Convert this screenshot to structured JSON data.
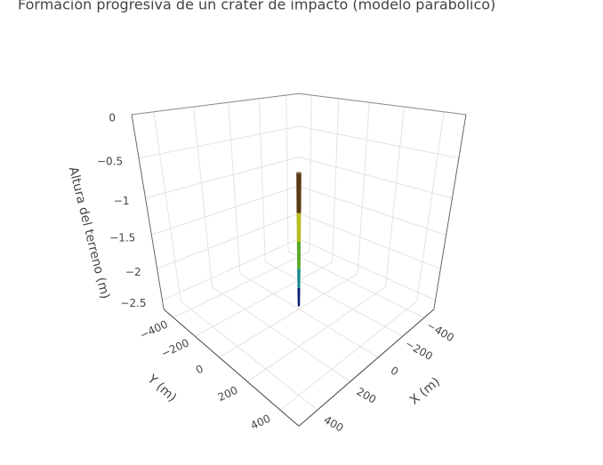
{
  "chart_data": {
    "type": "surface3d",
    "title": "Formación progresiva de un cráter de impacto (modelo parabólico)",
    "x_label": "X (m)",
    "y_label": "Y (m)",
    "z_label": "Altura del terreno (m)",
    "xlim": [
      -500,
      500
    ],
    "ylim": [
      -500,
      500
    ],
    "zlim": [
      -2.65,
      0
    ],
    "xticks": [
      {
        "value": -400,
        "label": "−400"
      },
      {
        "value": -200,
        "label": "−200"
      },
      0,
      200,
      400
    ],
    "yticks": [
      {
        "value": -400,
        "label": "−400"
      },
      {
        "value": -200,
        "label": "−200"
      },
      0,
      200,
      400
    ],
    "zticks": [
      0,
      {
        "value": -0.5,
        "label": "−0.5"
      },
      {
        "value": -1,
        "label": "−1"
      },
      {
        "value": -1.5,
        "label": "−1.5"
      },
      {
        "value": -2,
        "label": "−2"
      },
      {
        "value": -2.5,
        "label": "−2.5"
      }
    ],
    "grid": true,
    "surface": {
      "x": 0,
      "y": 0,
      "z": [
        -2.6,
        -2.3,
        -2.0,
        -1.6,
        -1.2,
        -0.68
      ],
      "colors": [
        "#0a1a6e",
        "#1b8a8c",
        "#5aa82a",
        "#b8bd20",
        "#5a3a12",
        "#8c735e"
      ]
    }
  }
}
